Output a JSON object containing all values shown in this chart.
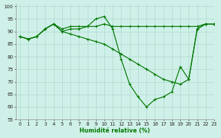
{
  "xlabel": "Humidité relative (%)",
  "background_color": "#cff0e8",
  "grid_color": "#aad8cc",
  "line_color": "#007700",
  "marker": "+",
  "xlim": [
    -0.5,
    23
  ],
  "ylim": [
    55,
    101
  ],
  "xticks": [
    0,
    1,
    2,
    3,
    4,
    5,
    6,
    7,
    8,
    9,
    10,
    11,
    12,
    13,
    14,
    15,
    16,
    17,
    18,
    19,
    20,
    21,
    22,
    23
  ],
  "yticks": [
    55,
    60,
    65,
    70,
    75,
    80,
    85,
    90,
    95,
    100
  ],
  "series": [
    [
      88,
      87,
      88,
      91,
      93,
      90,
      91,
      91,
      92,
      92,
      93,
      92,
      92,
      92,
      92,
      92,
      92,
      92,
      92,
      92,
      92,
      92,
      93,
      93
    ],
    [
      88,
      87,
      88,
      91,
      93,
      91,
      92,
      92,
      92,
      95,
      96,
      91,
      79,
      69,
      64,
      60,
      63,
      64,
      66,
      76,
      71,
      91,
      93,
      93
    ],
    [
      88,
      87,
      88,
      91,
      93,
      90,
      89,
      88,
      87,
      86,
      85,
      83,
      81,
      79,
      77,
      75,
      73,
      71,
      70,
      69,
      71,
      91,
      93,
      93
    ]
  ]
}
